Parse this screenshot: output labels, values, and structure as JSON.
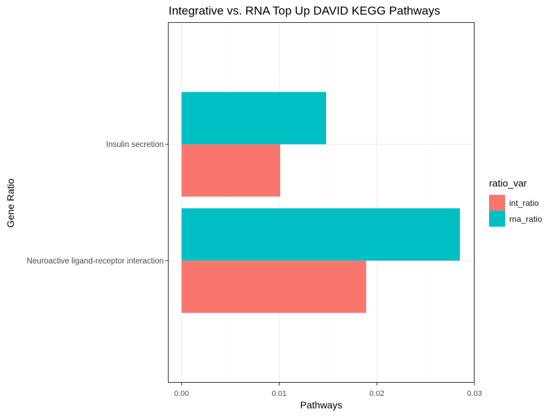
{
  "chart_data": {
    "type": "bar",
    "orientation": "horizontal",
    "title": "Integrative vs. RNA Top Up DAVID KEGG Pathways",
    "xlabel": "Pathways",
    "ylabel": "Gene Ratio",
    "categories": [
      "Insulin secretion",
      "Neuroactive ligand-receptor interaction"
    ],
    "series": [
      {
        "name": "int_ratio",
        "color": "#F8766D",
        "values": [
          0.0101,
          0.0189
        ]
      },
      {
        "name": "rna_ratio",
        "color": "#00BFC4",
        "values": [
          0.0148,
          0.0285
        ]
      }
    ],
    "xlim": [
      -0.0014,
      0.03
    ],
    "xticks": [
      0,
      0.01,
      0.02,
      0.03
    ],
    "xtick_labels": [
      "0.00",
      "0.01",
      "0.02",
      "0.03"
    ],
    "grid": true,
    "legend": {
      "title": "ratio_var",
      "position": "right"
    }
  }
}
